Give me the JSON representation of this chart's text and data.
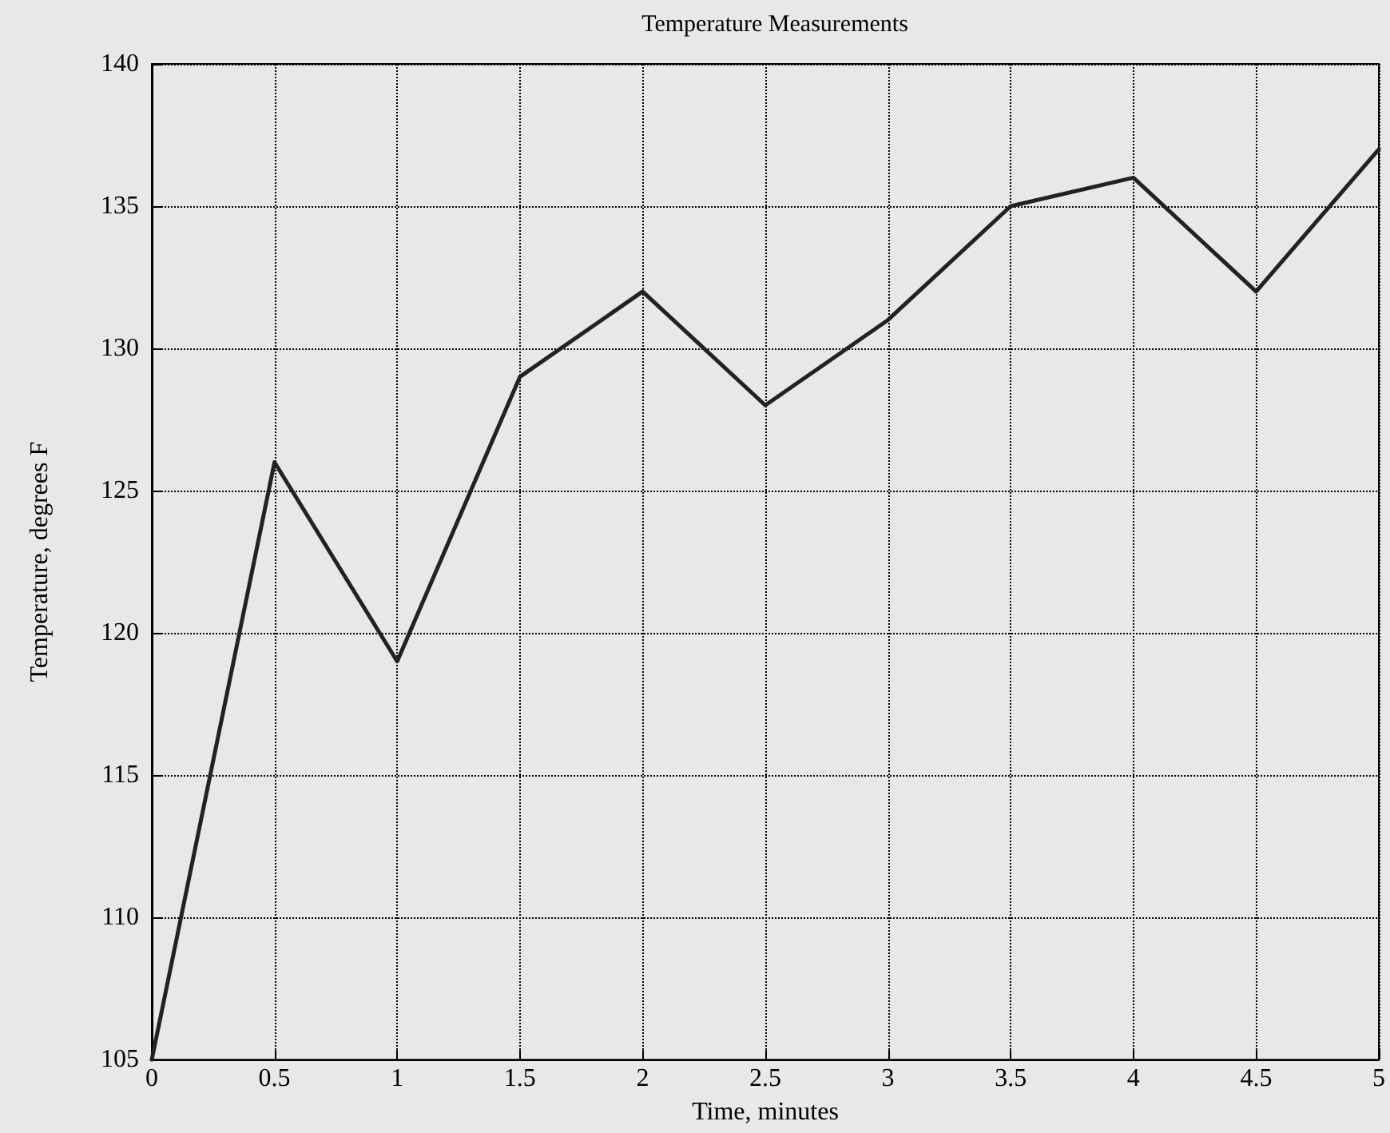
{
  "chart_data": {
    "type": "line",
    "title": "Temperature Measurements",
    "xlabel": "Time, minutes",
    "ylabel": "Temperature, degrees F",
    "x": [
      0,
      0.5,
      1,
      1.5,
      2,
      2.5,
      3,
      3.5,
      4,
      4.5,
      5
    ],
    "series": [
      {
        "color": "#222222",
        "values": [
          105,
          126,
          119,
          129,
          132,
          128,
          131,
          135,
          136,
          132,
          137
        ]
      }
    ],
    "xlim": [
      0,
      5
    ],
    "xticks": [
      0,
      0.5,
      1,
      1.5,
      2,
      2.5,
      3,
      3.5,
      4,
      4.5,
      5
    ],
    "ylim": [
      105,
      140
    ],
    "yticks": [
      105,
      110,
      115,
      120,
      125,
      130,
      135,
      140
    ],
    "grid": true,
    "marker": "none",
    "line_style": "solid"
  }
}
